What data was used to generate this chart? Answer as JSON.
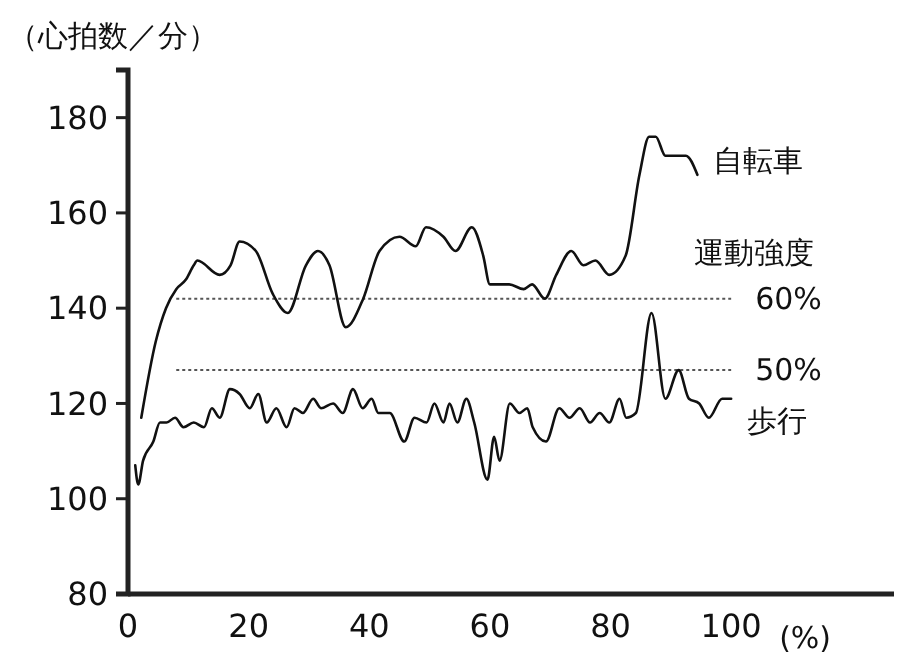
{
  "chart_data": {
    "type": "line",
    "ylabel": "（心拍数／分）",
    "xlabel": "(%)",
    "xlim": [
      0,
      127
    ],
    "xticks": [
      0,
      20,
      40,
      60,
      80,
      100
    ],
    "ylim": [
      80,
      190
    ],
    "yticks": [
      80,
      100,
      120,
      140,
      160,
      180
    ],
    "grid": false,
    "legend": false,
    "marker": "none",
    "line_style": "solid",
    "series": [
      {
        "name": "自転車",
        "color": "#111111",
        "x": [
          2.2,
          4.6,
          6.3,
          8,
          9.6,
          10.9,
          11.5,
          15.2,
          17,
          18.5,
          21.2,
          24,
          26.5,
          29.5,
          31.5,
          33.4,
          36.1,
          39,
          41.7,
          45,
          47.7,
          49.4,
          52.3,
          54.3,
          57,
          58.9,
          60,
          63.2,
          65.6,
          67,
          69.1,
          71,
          73.5,
          75.5,
          77.5,
          79.8,
          82.5,
          84.8,
          86.4,
          87.5,
          89.1,
          90.7,
          92.5,
          94.4
        ],
        "values": [
          117,
          133,
          140,
          144,
          146,
          149,
          150,
          147,
          149,
          154,
          152,
          143,
          139,
          149,
          152,
          149,
          136,
          142,
          152,
          155,
          153,
          157,
          155,
          152,
          157,
          151,
          145,
          145,
          144,
          145,
          142,
          147,
          152,
          149,
          150,
          147,
          151,
          168,
          176,
          176,
          172,
          172,
          172,
          168
        ]
      },
      {
        "name": "歩行",
        "color": "#111111",
        "x": [
          1.2,
          1.7,
          2.5,
          4.2,
          5.3,
          6.4,
          7.8,
          9.2,
          10.9,
          12.6,
          13.9,
          15.2,
          16.9,
          18.5,
          20.2,
          21.6,
          23,
          24.6,
          26.3,
          27.6,
          29,
          30.7,
          32,
          34,
          35.6,
          37.3,
          38.9,
          40.4,
          41.5,
          43.4,
          45.8,
          47.5,
          49.5,
          50.8,
          52.3,
          53.3,
          54.6,
          56.1,
          57.4,
          59.6,
          60.7,
          61.6,
          63.3,
          64.9,
          66.2,
          67.1,
          69.3,
          71.5,
          73.2,
          74.9,
          76.6,
          78.2,
          79.8,
          81.5,
          82.6,
          84.2,
          86.8,
          89.1,
          91.3,
          93,
          94.7,
          96.3,
          98.5,
          100
        ],
        "values": [
          107,
          103,
          108,
          112,
          116,
          116,
          117,
          115,
          116,
          115,
          119,
          117,
          123,
          122,
          119,
          122,
          116,
          119,
          115,
          119,
          118,
          121,
          119,
          120,
          118,
          123,
          119,
          121,
          118,
          118,
          112,
          117,
          116,
          120,
          116,
          120,
          116,
          121,
          116,
          104,
          113,
          108,
          120,
          118,
          119,
          115,
          112,
          119,
          117,
          119,
          116,
          118,
          116,
          121,
          117,
          118,
          139,
          121,
          127,
          121,
          120,
          117,
          121,
          121
        ]
      }
    ],
    "ref_lines": [
      {
        "axis": "y",
        "value": 142,
        "line_style": "dotted",
        "color": "#555555"
      },
      {
        "axis": "y",
        "value": 127,
        "line_style": "dotted",
        "color": "#555555"
      }
    ],
    "annotations": [
      "運動強度",
      {
        "text": "60%",
        "x": 100,
        "y": 142
      },
      {
        "text": "50%",
        "x": 100,
        "y": 127
      }
    ]
  }
}
